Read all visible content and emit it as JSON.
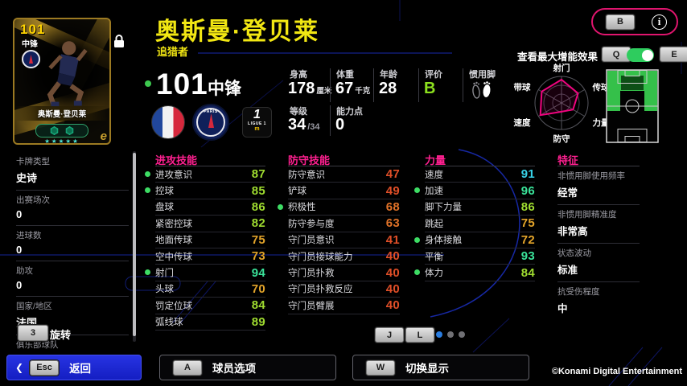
{
  "colors": {
    "accent_pink": "#ff2090",
    "title_yellow": "#f2e713",
    "boost_dot": "#3ddc64",
    "toggle_on": "#2ecc5e",
    "frame_pink": "#e0156e",
    "pager_active": "#2a7de0",
    "rating_green": "#8ce01e",
    "presence_green": "#3dc94f"
  },
  "header": {
    "player_name": "奥斯曼·登贝莱",
    "card_theme": "追猎者",
    "overall_rating": "101",
    "position": "中锋"
  },
  "card": {
    "rating": "101",
    "position": "中锋",
    "player_name": "奥斯曼·登贝莱",
    "stars": "★★★★★"
  },
  "top_right": {
    "b_key": "B",
    "info_icon": "i",
    "boost_toggle_label": "查看最大增能效果",
    "q_key": "Q",
    "e_key": "E"
  },
  "bio": {
    "height_label": "身高",
    "height_value": "178",
    "height_unit": "厘米",
    "weight_label": "体重",
    "weight_value": "67",
    "weight_unit": "千克",
    "age_label": "年龄",
    "age_value": "28",
    "rating_label": "评价",
    "rating_value": "B",
    "foot_label": "惯用脚",
    "level_label": "等级",
    "level_value": "34",
    "level_max": "/34",
    "ability_label": "能力点",
    "ability_value": "0"
  },
  "radar": {
    "labels": [
      "射门",
      "传球",
      "力量",
      "防守",
      "速度",
      "带球"
    ],
    "values": [
      0.88,
      0.72,
      0.5,
      0.33,
      0.92,
      0.86
    ]
  },
  "info": {
    "rows": [
      {
        "label": "卡牌类型",
        "value": "史诗"
      },
      {
        "label": "出赛场次",
        "value": "0"
      },
      {
        "label": "进球数",
        "value": "0"
      },
      {
        "label": "助攻",
        "value": "0"
      },
      {
        "label": "国家/地区",
        "value": "法国"
      },
      {
        "label": "俱乐部球队",
        "value": ""
      }
    ]
  },
  "rotate": {
    "key": "3",
    "label": "旋转"
  },
  "attack": {
    "title": "进攻技能",
    "rows": [
      {
        "label": "进攻意识",
        "value": "87",
        "color": "#9fdc30",
        "boosted": true
      },
      {
        "label": "控球",
        "value": "85",
        "color": "#9fdc30",
        "boosted": true
      },
      {
        "label": "盘球",
        "value": "86",
        "color": "#9fdc30"
      },
      {
        "label": "紧密控球",
        "value": "82",
        "color": "#9fdc30"
      },
      {
        "label": "地面传球",
        "value": "75",
        "color": "#e3a42a"
      },
      {
        "label": "空中传球",
        "value": "73",
        "color": "#e3a42a"
      },
      {
        "label": "射门",
        "value": "94",
        "color": "#3ae39a",
        "boosted": true
      },
      {
        "label": "头球",
        "value": "70",
        "color": "#e3a42a"
      },
      {
        "label": "罚定位球",
        "value": "84",
        "color": "#9fdc30"
      },
      {
        "label": "弧线球",
        "value": "89",
        "color": "#9fdc30"
      }
    ]
  },
  "defense": {
    "title": "防守技能",
    "rows": [
      {
        "label": "防守意识",
        "value": "47",
        "color": "#e04f28"
      },
      {
        "label": "铲球",
        "value": "49",
        "color": "#e04f28"
      },
      {
        "label": "积极性",
        "value": "68",
        "color": "#e07228",
        "boosted": true
      },
      {
        "label": "防守参与度",
        "value": "63",
        "color": "#e07228"
      },
      {
        "label": "守门员意识",
        "value": "41",
        "color": "#e04f28"
      },
      {
        "label": "守门员接球能力",
        "value": "40",
        "color": "#e04f28"
      },
      {
        "label": "守门员扑救",
        "value": "40",
        "color": "#e04f28"
      },
      {
        "label": "守门员扑救反应",
        "value": "40",
        "color": "#e04f28"
      },
      {
        "label": "守门员臂展",
        "value": "40",
        "color": "#e04f28"
      }
    ]
  },
  "power": {
    "title": "力量",
    "rows": [
      {
        "label": "速度",
        "value": "91",
        "color": "#38d2e8"
      },
      {
        "label": "加速",
        "value": "96",
        "color": "#3ae39a",
        "boosted": true
      },
      {
        "label": "脚下力量",
        "value": "86",
        "color": "#9fdc30"
      },
      {
        "label": "跳起",
        "value": "75",
        "color": "#e3a42a"
      },
      {
        "label": "身体接触",
        "value": "72",
        "color": "#e3a42a",
        "boosted": true
      },
      {
        "label": "平衡",
        "value": "93",
        "color": "#3ae39a"
      },
      {
        "label": "体力",
        "value": "84",
        "color": "#9fdc30",
        "boosted": true
      }
    ]
  },
  "traits": {
    "title": "特征",
    "rows": [
      {
        "label": "非惯用脚使用频率",
        "value": "经常"
      },
      {
        "label": "非惯用脚精准度",
        "value": "非常高"
      },
      {
        "label": "状态波动",
        "value": "标准"
      },
      {
        "label": "抗受伤程度",
        "value": "中"
      }
    ]
  },
  "pager": {
    "j_key": "J",
    "l_key": "L"
  },
  "footer": {
    "esc_key": "Esc",
    "back_label": "返回",
    "a_key": "A",
    "player_options_label": "球员选项",
    "w_key": "W",
    "toggle_display_label": "切换显示",
    "copyright": "©Konami Digital Entertainment"
  }
}
